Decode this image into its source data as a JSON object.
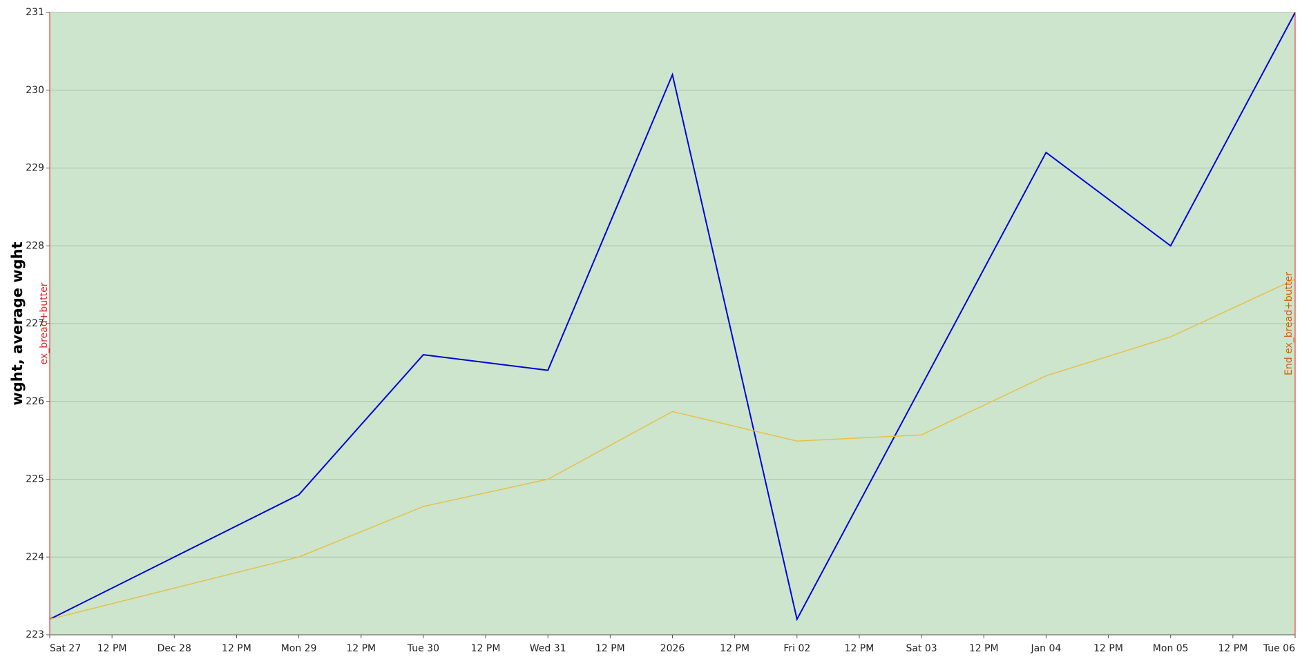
{
  "chart_data": {
    "type": "line",
    "y_label": "wght, average wght",
    "x": [
      0,
      1,
      2,
      3,
      4,
      5,
      6,
      7,
      8,
      9,
      10
    ],
    "xlim": [
      0,
      10
    ],
    "xticks": [
      {
        "value": 0,
        "label": "Sat 27"
      },
      {
        "value": 0.5,
        "label": "12 PM"
      },
      {
        "value": 1,
        "label": "Dec 28"
      },
      {
        "value": 1.5,
        "label": "12 PM"
      },
      {
        "value": 2,
        "label": "Mon 29"
      },
      {
        "value": 2.5,
        "label": "12 PM"
      },
      {
        "value": 3,
        "label": "Tue 30"
      },
      {
        "value": 3.5,
        "label": "12 PM"
      },
      {
        "value": 4,
        "label": "Wed 31"
      },
      {
        "value": 4.5,
        "label": "12 PM"
      },
      {
        "value": 5,
        "label": "2026"
      },
      {
        "value": 5.5,
        "label": "12 PM"
      },
      {
        "value": 6,
        "label": "Fri 02"
      },
      {
        "value": 6.5,
        "label": "12 PM"
      },
      {
        "value": 7,
        "label": "Sat 03"
      },
      {
        "value": 7.5,
        "label": "12 PM"
      },
      {
        "value": 8,
        "label": "Jan 04"
      },
      {
        "value": 8.5,
        "label": "12 PM"
      },
      {
        "value": 9,
        "label": "Mon 05"
      },
      {
        "value": 9.5,
        "label": "12 PM"
      },
      {
        "value": 10,
        "label": "Tue 06"
      }
    ],
    "ylim": [
      223,
      231
    ],
    "yticks": [
      223,
      224,
      225,
      226,
      227,
      228,
      229,
      230,
      231
    ],
    "grid": true,
    "background": "#cce5cc",
    "series": [
      {
        "color": "#0000dd",
        "values": [
          223.2,
          224.0,
          224.8,
          226.6,
          226.4,
          230.2,
          223.2,
          226.2,
          229.2,
          228.0,
          231.0
        ]
      },
      {
        "color": "#e8c04a",
        "values": [
          223.2,
          223.6,
          224.0,
          224.65,
          225.0,
          225.87,
          225.49,
          225.57,
          226.33,
          226.83,
          227.57
        ]
      }
    ],
    "annotations": [
      {
        "x": 0,
        "label": "ex_bread+butter",
        "color": "#e02020"
      },
      {
        "x": 10,
        "label": "End ex_bread+butter",
        "color": "#d06010"
      }
    ]
  }
}
